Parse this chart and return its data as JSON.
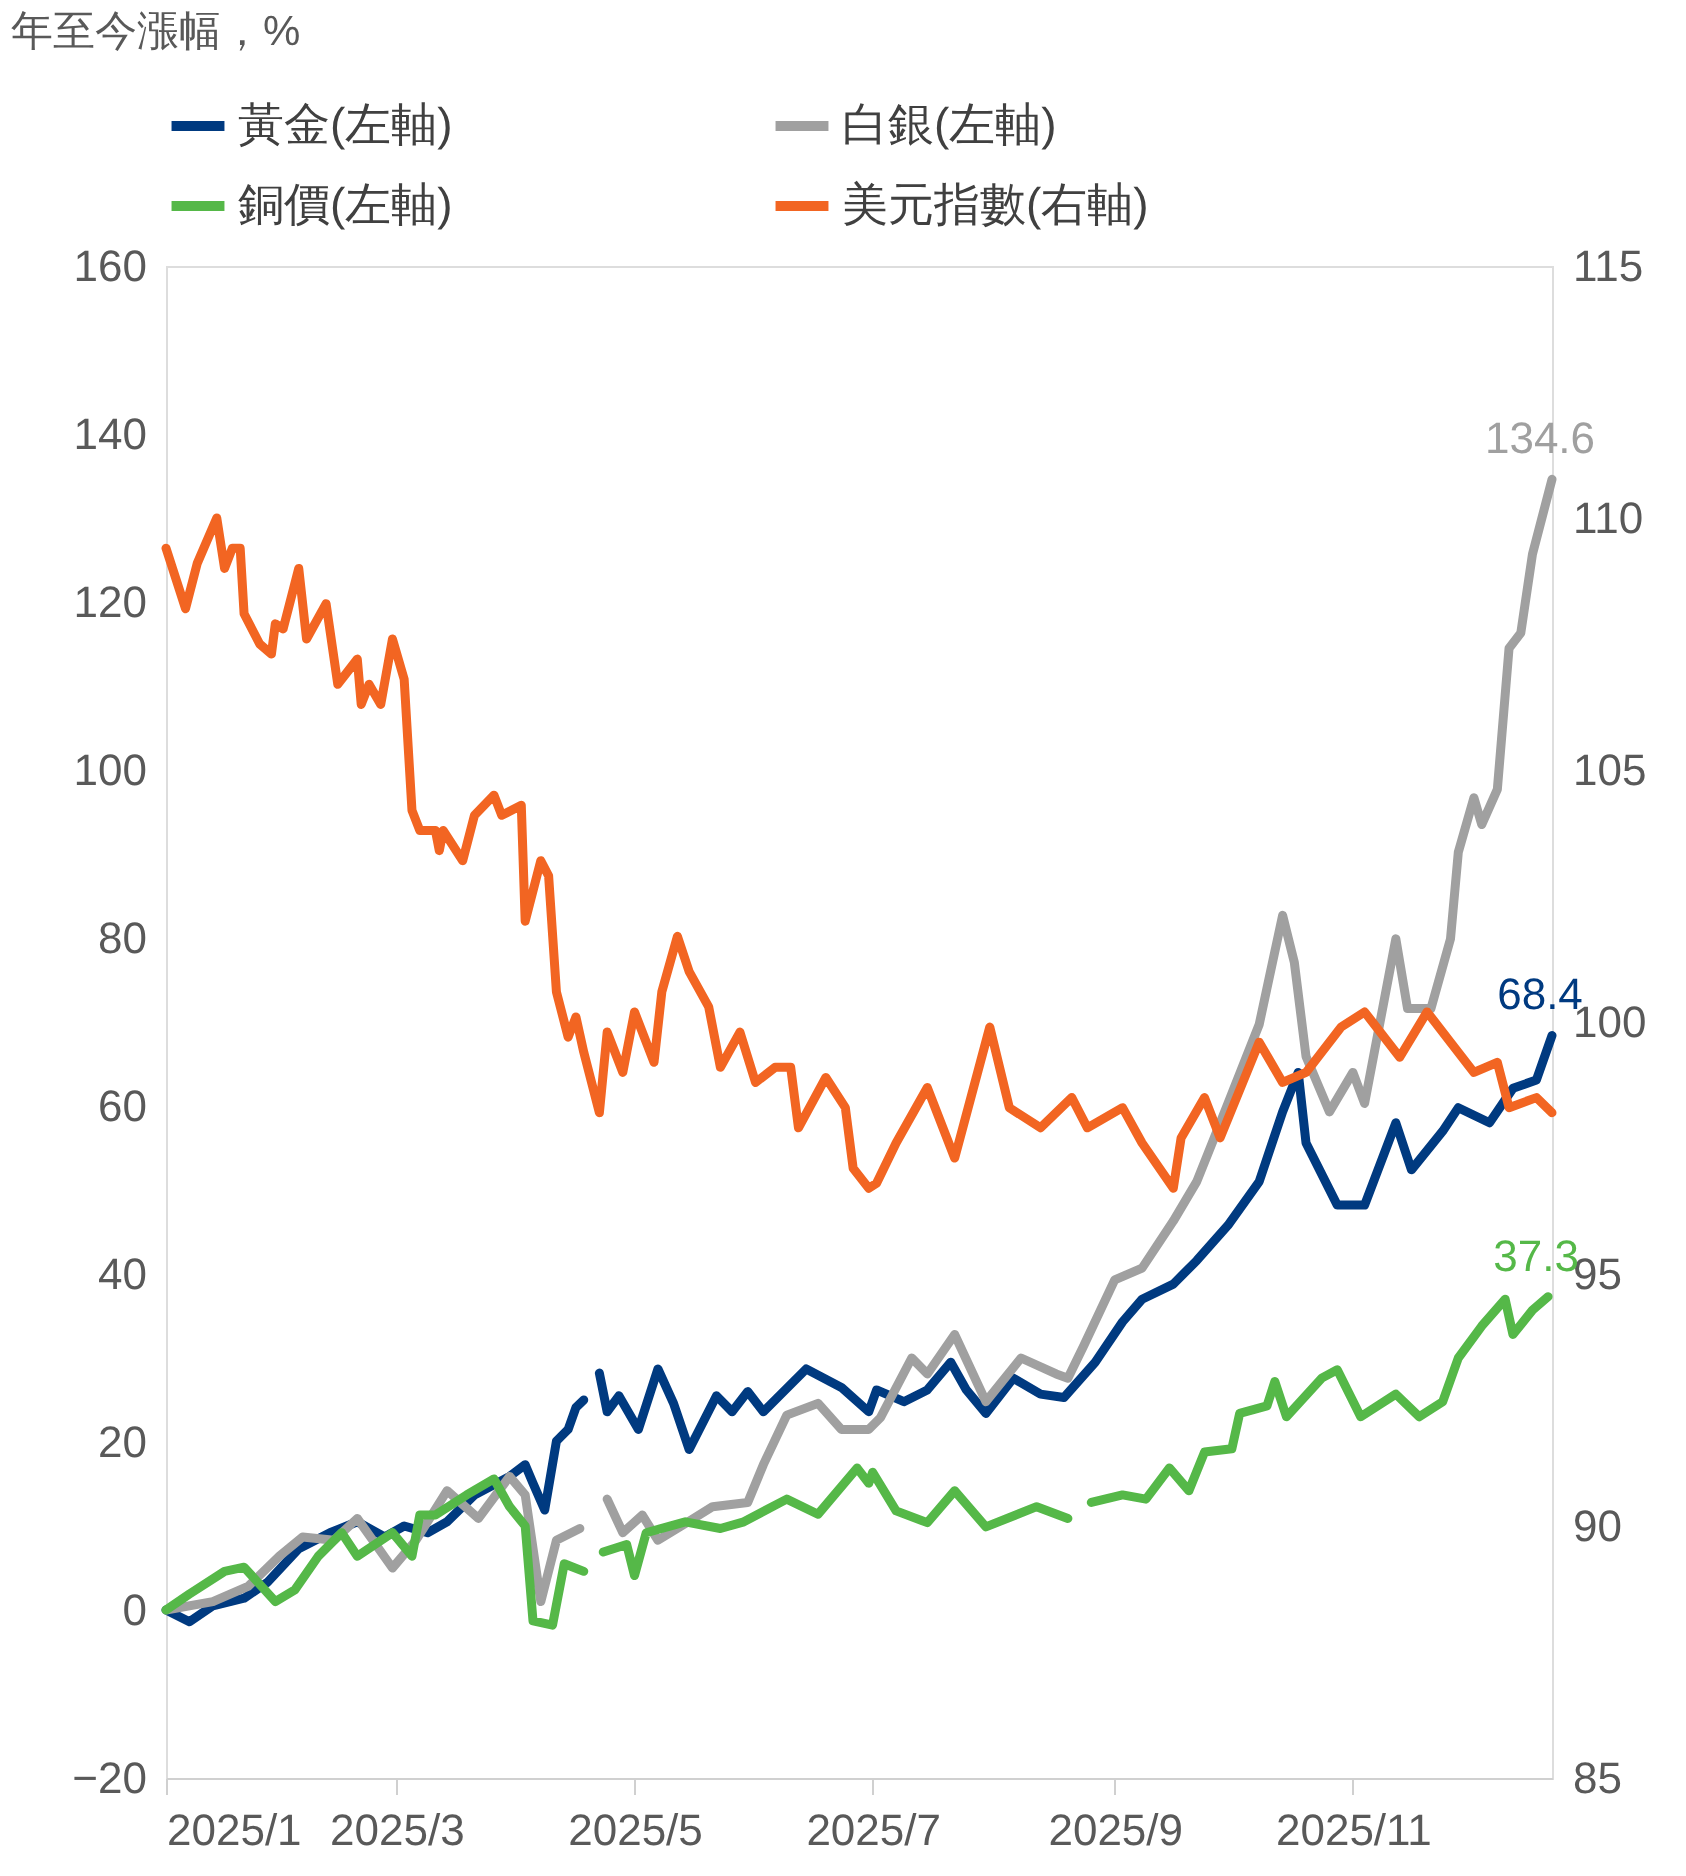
{
  "chart_data": {
    "type": "line",
    "ylabel": "年至今漲幅，%",
    "xlim": [
      "2025-01-01",
      "2025-12-22"
    ],
    "xticks": [
      {
        "value": "2025-01-01",
        "label": "2025/1"
      },
      {
        "value": "2025-03-01",
        "label": "2025/3"
      },
      {
        "value": "2025-05-01",
        "label": "2025/5"
      },
      {
        "value": "2025-07-01",
        "label": "2025/7"
      },
      {
        "value": "2025-09-01",
        "label": "2025/9"
      },
      {
        "value": "2025-11-01",
        "label": "2025/11"
      }
    ],
    "ylim": [
      -20,
      160
    ],
    "yticks": [
      -20,
      0,
      20,
      40,
      60,
      80,
      100,
      120,
      140,
      160
    ],
    "y2lim": [
      85,
      115
    ],
    "y2ticks": [
      85,
      90,
      95,
      100,
      105,
      110,
      115
    ],
    "grid": false,
    "legend": "top",
    "marker": "none",
    "line_style": "solid",
    "series": [
      {
        "name": "黃金(左軸)",
        "color": "#003a80",
        "x": [
          "2025-01-01",
          "2025-01-07",
          "2025-01-13",
          "2025-01-21",
          "2025-01-27",
          "2025-02-04",
          "2025-02-12",
          "2025-02-19",
          "2025-02-26",
          "2025-03-03",
          "2025-03-09",
          "2025-03-14",
          "2025-03-21",
          "2025-03-30",
          "2025-04-03",
          "2025-04-05",
          "2025-04-08",
          "2025-04-11",
          "2025-04-14",
          "2025-04-16",
          "2025-04-18",
          "2025-04-20",
          "2025-04-22",
          "2025-04-24",
          "2025-04-27",
          "2025-05-02",
          "2025-05-07",
          "2025-05-11",
          "2025-05-15",
          "2025-05-22",
          "2025-05-26",
          "2025-05-30",
          "2025-06-03",
          "2025-06-14",
          "2025-06-23",
          "2025-06-30",
          "2025-07-02",
          "2025-07-09",
          "2025-07-15",
          "2025-07-21",
          "2025-07-25",
          "2025-07-30",
          "2025-08-06",
          "2025-08-13",
          "2025-08-19",
          "2025-08-27",
          "2025-09-03",
          "2025-09-08",
          "2025-09-16",
          "2025-09-22",
          "2025-09-30",
          "2025-10-08",
          "2025-10-14",
          "2025-10-18",
          "2025-10-20",
          "2025-10-28",
          "2025-11-04",
          "2025-11-12",
          "2025-11-16",
          "2025-11-24",
          "2025-11-28",
          "2025-12-06",
          "2025-12-12",
          "2025-12-18",
          "2025-12-22"
        ],
        "values": [
          0,
          -1.4,
          0.5,
          1.4,
          3.3,
          7.3,
          9.2,
          10.5,
          8.7,
          10.0,
          9.2,
          10.5,
          13.7,
          15.9,
          17.3,
          15.1,
          11.9,
          20.1,
          21.5,
          24.1,
          25.0,
          null,
          28.2,
          23.6,
          25.5,
          21.5,
          28.7,
          24.6,
          19.1,
          25.5,
          23.6,
          26.0,
          23.6,
          28.7,
          26.5,
          23.6,
          26.2,
          24.8,
          26.2,
          29.5,
          26.2,
          23.4,
          27.6,
          25.7,
          25.3,
          29.5,
          34.3,
          37.0,
          38.8,
          41.6,
          45.8,
          51.0,
          59.3,
          64.0,
          55.6,
          48.2,
          48.2,
          58.0,
          52.4,
          57.0,
          59.8,
          58.0,
          62.1,
          63.1,
          68.4
        ]
      },
      {
        "name": "白銀(左軸)",
        "color": "#a0a0a0",
        "x": [
          "2025-01-01",
          "2025-01-13",
          "2025-01-22",
          "2025-01-30",
          "2025-02-05",
          "2025-02-13",
          "2025-02-19",
          "2025-02-28",
          "2025-03-06",
          "2025-03-14",
          "2025-03-22",
          "2025-03-30",
          "2025-04-03",
          "2025-04-07",
          "2025-04-11",
          "2025-04-17",
          "2025-04-20",
          "2025-04-24",
          "2025-04-28",
          "2025-05-03",
          "2025-05-07",
          "2025-05-13",
          "2025-05-21",
          "2025-05-30",
          "2025-06-03",
          "2025-06-09",
          "2025-06-17",
          "2025-06-23",
          "2025-06-30",
          "2025-07-03",
          "2025-07-11",
          "2025-07-15",
          "2025-07-22",
          "2025-07-30",
          "2025-08-08",
          "2025-08-17",
          "2025-08-20",
          "2025-08-24",
          "2025-09-01",
          "2025-09-08",
          "2025-09-16",
          "2025-09-22",
          "2025-09-30",
          "2025-10-08",
          "2025-10-14",
          "2025-10-17",
          "2025-10-20",
          "2025-10-26",
          "2025-11-01",
          "2025-11-04",
          "2025-11-12",
          "2025-11-15",
          "2025-11-21",
          "2025-11-26",
          "2025-11-28",
          "2025-12-02",
          "2025-12-04",
          "2025-12-08",
          "2025-12-11",
          "2025-12-14",
          "2025-12-17",
          "2025-12-22"
        ],
        "values": [
          0,
          1.0,
          2.8,
          6.4,
          8.7,
          8.3,
          10.9,
          5.0,
          8.3,
          14.2,
          10.9,
          15.9,
          13.7,
          1.0,
          8.3,
          9.7,
          null,
          13.2,
          9.2,
          11.3,
          8.3,
          10.0,
          12.3,
          12.8,
          17.3,
          23.2,
          24.6,
          21.5,
          21.5,
          22.9,
          30.0,
          28.1,
          32.8,
          24.8,
          30.0,
          28.1,
          27.6,
          31.4,
          39.3,
          40.7,
          46.3,
          51.0,
          60.3,
          69.7,
          82.7,
          77.1,
          65.9,
          59.3,
          64.0,
          60.3,
          79.9,
          71.6,
          71.6,
          79.9,
          90.2,
          96.7,
          93.5,
          97.7,
          114.5,
          116.3,
          125.7,
          134.6
        ]
      },
      {
        "name": "銅價(左軸)",
        "color": "#55b848",
        "x": [
          "2025-01-01",
          "2025-01-07",
          "2025-01-16",
          "2025-01-21",
          "2025-01-29",
          "2025-02-03",
          "2025-02-09",
          "2025-02-15",
          "2025-02-19",
          "2025-02-28",
          "2025-03-05",
          "2025-03-07",
          "2025-03-11",
          "2025-03-19",
          "2025-03-26",
          "2025-03-30",
          "2025-04-03",
          "2025-04-05",
          "2025-04-10",
          "2025-04-13",
          "2025-04-18",
          "2025-04-20",
          "2025-04-23",
          "2025-04-29",
          "2025-05-01",
          "2025-05-04",
          "2025-05-14",
          "2025-05-23",
          "2025-05-29",
          "2025-06-09",
          "2025-06-17",
          "2025-06-27",
          "2025-06-30",
          "2025-07-01",
          "2025-07-07",
          "2025-07-15",
          "2025-07-22",
          "2025-07-30",
          "2025-08-12",
          "2025-08-20",
          "2025-08-23",
          "2025-08-26",
          "2025-09-03",
          "2025-09-09",
          "2025-09-15",
          "2025-09-20",
          "2025-09-24",
          "2025-10-01",
          "2025-10-03",
          "2025-10-10",
          "2025-10-12",
          "2025-10-15",
          "2025-10-24",
          "2025-10-28",
          "2025-11-03",
          "2025-11-12",
          "2025-11-18",
          "2025-11-24",
          "2025-11-28",
          "2025-12-04",
          "2025-12-10",
          "2025-12-12",
          "2025-12-17",
          "2025-12-21"
        ],
        "values": [
          0,
          1.9,
          4.6,
          5.1,
          1.0,
          2.4,
          6.4,
          9.2,
          6.4,
          9.2,
          6.4,
          11.3,
          11.3,
          13.7,
          15.6,
          12.3,
          10.0,
          -1.3,
          -1.8,
          5.5,
          4.6,
          null,
          6.9,
          7.8,
          4.1,
          9.2,
          10.5,
          9.7,
          10.5,
          13.2,
          11.4,
          16.9,
          15.1,
          16.4,
          11.8,
          10.4,
          14.2,
          9.9,
          12.3,
          10.9,
          null,
          12.8,
          13.7,
          13.2,
          16.9,
          14.2,
          18.8,
          19.2,
          23.4,
          24.3,
          27.2,
          23.0,
          27.6,
          28.6,
          23.0,
          25.7,
          23.0,
          24.8,
          30.0,
          33.8,
          37.0,
          32.8,
          35.7,
          37.3
        ]
      },
      {
        "name": "美元指數(右軸)",
        "color": "#f26522",
        "axis": "y2",
        "x": [
          "2025-01-01",
          "2025-01-06",
          "2025-01-09",
          "2025-01-14",
          "2025-01-16",
          "2025-01-18",
          "2025-01-20",
          "2025-01-21",
          "2025-01-25",
          "2025-01-28",
          "2025-01-29",
          "2025-01-31",
          "2025-02-04",
          "2025-02-06",
          "2025-02-11",
          "2025-02-14",
          "2025-02-19",
          "2025-02-20",
          "2025-02-22",
          "2025-02-25",
          "2025-02-28",
          "2025-03-03",
          "2025-03-05",
          "2025-03-07",
          "2025-03-11",
          "2025-03-12",
          "2025-03-13",
          "2025-03-18",
          "2025-03-21",
          "2025-03-26",
          "2025-03-28",
          "2025-04-02",
          "2025-04-03",
          "2025-04-07",
          "2025-04-09",
          "2025-04-11",
          "2025-04-14",
          "2025-04-16",
          "2025-04-18",
          "2025-04-22",
          "2025-04-24",
          "2025-04-28",
          "2025-05-01",
          "2025-05-06",
          "2025-05-08",
          "2025-05-12",
          "2025-05-15",
          "2025-05-20",
          "2025-05-23",
          "2025-05-28",
          "2025-06-01",
          "2025-06-06",
          "2025-06-10",
          "2025-06-12",
          "2025-06-19",
          "2025-06-24",
          "2025-06-26",
          "2025-06-30",
          "2025-07-02",
          "2025-07-07",
          "2025-07-15",
          "2025-07-22",
          "2025-07-31",
          "2025-08-05",
          "2025-08-13",
          "2025-08-21",
          "2025-08-25",
          "2025-09-03",
          "2025-09-08",
          "2025-09-16",
          "2025-09-18",
          "2025-09-24",
          "2025-09-28",
          "2025-10-08",
          "2025-10-14",
          "2025-10-20",
          "2025-10-29",
          "2025-11-04",
          "2025-11-13",
          "2025-11-20",
          "2025-11-26",
          "2025-12-02",
          "2025-12-08",
          "2025-12-11",
          "2025-12-18",
          "2025-12-22"
        ],
        "values": [
          109.4,
          108.2,
          109.1,
          110.0,
          109.0,
          109.4,
          109.4,
          108.1,
          107.5,
          107.3,
          107.9,
          107.8,
          109.0,
          107.6,
          108.3,
          106.7,
          107.2,
          106.3,
          106.7,
          106.3,
          107.6,
          106.8,
          104.2,
          103.8,
          103.8,
          103.4,
          103.8,
          103.2,
          104.1,
          104.5,
          104.1,
          104.3,
          102.0,
          103.2,
          102.9,
          100.6,
          99.7,
          100.1,
          99.4,
          98.2,
          99.8,
          99.0,
          100.2,
          99.2,
          100.6,
          101.7,
          101.0,
          100.3,
          99.1,
          99.8,
          98.8,
          99.1,
          99.1,
          97.9,
          98.9,
          98.3,
          97.1,
          96.7,
          96.8,
          97.6,
          98.7,
          97.3,
          99.9,
          98.3,
          97.9,
          98.5,
          97.9,
          98.3,
          97.6,
          96.7,
          97.7,
          98.5,
          97.7,
          99.6,
          98.8,
          99.0,
          99.9,
          100.2,
          99.3,
          100.2,
          99.6,
          99.0,
          99.2,
          98.3,
          98.5,
          98.2
        ]
      }
    ],
    "annotations": [
      {
        "text": "134.6",
        "x": "2025-12-22",
        "y": 134.6
      },
      {
        "text": "68.4",
        "x": "2025-12-22",
        "y": 68.4
      },
      {
        "text": "37.3",
        "x": "2025-12-21",
        "y": 37.3
      }
    ]
  }
}
